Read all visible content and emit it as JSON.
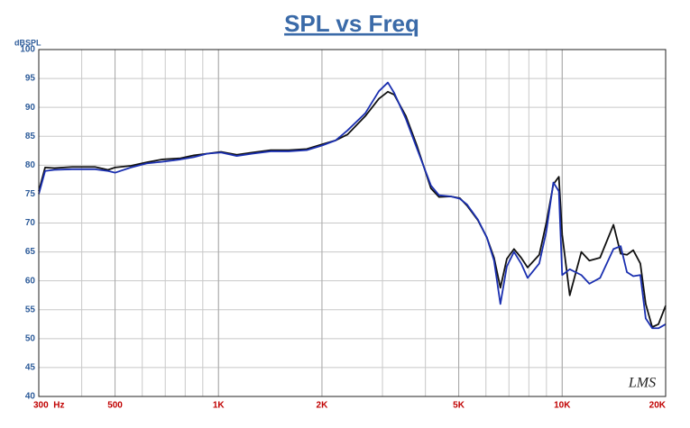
{
  "chart_data": {
    "type": "line",
    "title": "SPL vs Freq",
    "y_label": "dBSPL",
    "annotation": "LMS",
    "xlog": true,
    "grid": true,
    "xlim": [
      300,
      20000
    ],
    "ylim": [
      40,
      100
    ],
    "xticks": [
      {
        "value": 300,
        "label": "300  Hz"
      },
      500,
      {
        "value": 1000,
        "label": "1K"
      },
      {
        "value": 2000,
        "label": "2K"
      },
      {
        "value": 5000,
        "label": "5K"
      },
      {
        "value": 10000,
        "label": "10K"
      },
      {
        "value": 20000,
        "label": "20K"
      }
    ],
    "yticks": [
      40,
      45,
      50,
      55,
      60,
      65,
      70,
      75,
      80,
      85,
      90,
      95,
      100
    ],
    "x": [
      300,
      313,
      333,
      375,
      437,
      477,
      500,
      556,
      618,
      687,
      775,
      848,
      928,
      1017,
      1130,
      1256,
      1418,
      1600,
      1806,
      2000,
      2194,
      2372,
      2675,
      2929,
      3110,
      3245,
      3510,
      3773,
      4150,
      4382,
      4743,
      5037,
      5287,
      5684,
      6037,
      6335,
      6610,
      6902,
      7240,
      7596,
      7933,
      8575,
      8990,
      9426,
      9780,
      10000,
      10520,
      11370,
      12000,
      12890,
      14100,
      14800,
      15430,
      16100,
      16880,
      17500,
      18280,
      19060,
      20000
    ],
    "series": [
      {
        "color": "#111111",
        "values": [
          75.5,
          79.6,
          79.5,
          79.7,
          79.7,
          79.2,
          79.6,
          79.9,
          80.5,
          81,
          81.2,
          81.7,
          82,
          82.3,
          81.8,
          82.2,
          82.6,
          82.6,
          82.8,
          83.6,
          84.3,
          85.3,
          88.5,
          91.5,
          92.7,
          92.2,
          88.5,
          83.5,
          76,
          74.5,
          74.6,
          74.3,
          73,
          70.5,
          67.5,
          64,
          58.8,
          63.8,
          65.5,
          64,
          62.3,
          64.5,
          70,
          76.7,
          78,
          68,
          57.5,
          65,
          63.5,
          64,
          69.7,
          64.7,
          64.5,
          65.3,
          63,
          56,
          52,
          52.5,
          55.7
        ]
      },
      {
        "color": "#1a2fb0",
        "values": [
          75,
          79,
          79.2,
          79.3,
          79.3,
          79,
          78.7,
          79.6,
          80.3,
          80.6,
          81,
          81.4,
          82,
          82.2,
          81.6,
          82,
          82.4,
          82.4,
          82.6,
          83.4,
          84.3,
          86,
          89,
          92.8,
          94.3,
          92.5,
          88,
          83,
          76.5,
          74.8,
          74.6,
          74.2,
          73.2,
          70.6,
          67.5,
          63.5,
          56,
          62.5,
          65,
          63,
          60.5,
          63,
          68.5,
          77,
          75.5,
          61,
          62,
          61,
          59.5,
          60.5,
          65.5,
          66,
          61.5,
          60.8,
          61,
          53.5,
          51.8,
          51.8,
          52.5
        ]
      }
    ]
  }
}
